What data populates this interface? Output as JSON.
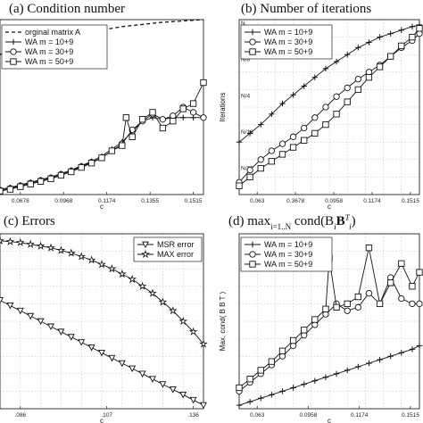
{
  "chart_data": [
    {
      "id": "a",
      "type": "line",
      "title": "(a) Condition number",
      "xlabel": "c",
      "ylabel": "",
      "x_ticks": [
        "0.0678",
        "0.0968",
        "0.1174",
        "0.1355",
        "0.1515"
      ],
      "xlim": [
        0,
        1
      ],
      "ylim": [
        0,
        1
      ],
      "legend": {
        "placement": "top-left",
        "entries": [
          {
            "label": "orginal matrix  A",
            "marker": "none",
            "dash": true
          },
          {
            "label": "WA  m = 10+9",
            "marker": "plus"
          },
          {
            "label": "WA  m = 30+9",
            "marker": "circle"
          },
          {
            "label": "WA  m = 50+9",
            "marker": "square"
          }
        ]
      },
      "grid": false,
      "series": [
        {
          "marker": "none",
          "dash": true,
          "values_x": [
            0,
            0.2,
            0.4,
            0.6,
            0.8,
            1.0
          ],
          "values_y": [
            0.8,
            0.87,
            0.92,
            0.96,
            0.985,
            1.0
          ]
        },
        {
          "marker": "plus",
          "values_x": [
            0,
            0.05,
            0.1,
            0.15,
            0.2,
            0.25,
            0.3,
            0.35,
            0.4,
            0.45,
            0.5,
            0.55,
            0.6,
            0.65,
            0.7,
            0.75,
            0.8,
            0.85,
            0.9,
            0.95,
            1.0
          ],
          "values_y": [
            0.03,
            0.04,
            0.055,
            0.07,
            0.085,
            0.1,
            0.12,
            0.14,
            0.165,
            0.19,
            0.22,
            0.26,
            0.3,
            0.36,
            0.42,
            0.44,
            0.43,
            0.44,
            0.44,
            0.44,
            0.44
          ]
        },
        {
          "marker": "circle",
          "values_x": [
            0,
            0.05,
            0.1,
            0.15,
            0.2,
            0.25,
            0.3,
            0.35,
            0.4,
            0.45,
            0.5,
            0.55,
            0.6,
            0.65,
            0.7,
            0.75,
            0.8,
            0.85,
            0.9,
            0.95,
            1.0
          ],
          "values_y": [
            0.025,
            0.035,
            0.05,
            0.065,
            0.08,
            0.095,
            0.115,
            0.135,
            0.16,
            0.185,
            0.21,
            0.25,
            0.29,
            0.37,
            0.42,
            0.46,
            0.43,
            0.45,
            0.5,
            0.47,
            0.44
          ]
        },
        {
          "marker": "square",
          "values_x": [
            0,
            0.05,
            0.1,
            0.15,
            0.2,
            0.25,
            0.3,
            0.35,
            0.4,
            0.45,
            0.5,
            0.55,
            0.6,
            0.62,
            0.65,
            0.7,
            0.75,
            0.8,
            0.85,
            0.9,
            0.95,
            1.0
          ],
          "values_y": [
            0.02,
            0.03,
            0.045,
            0.06,
            0.075,
            0.09,
            0.11,
            0.13,
            0.155,
            0.18,
            0.21,
            0.25,
            0.28,
            0.44,
            0.33,
            0.43,
            0.47,
            0.38,
            0.42,
            0.49,
            0.52,
            0.64
          ]
        }
      ]
    },
    {
      "id": "b",
      "type": "line",
      "title": "(b) Number of iterations",
      "xlabel": "c",
      "ylabel": "Iterations",
      "x_ticks": [
        "0.063",
        "0.3678",
        "0.0958",
        "0.1174",
        "0.1515"
      ],
      "y_ticks": [
        "N/32",
        "N/16",
        "N/4",
        "N/8",
        "N"
      ],
      "xlim": [
        0,
        1
      ],
      "ylim": [
        0,
        1
      ],
      "legend": {
        "placement": "top-left",
        "entries": [
          {
            "label": "WA  m = 10+9",
            "marker": "plus"
          },
          {
            "label": "WA  m = 30+9",
            "marker": "circle"
          },
          {
            "label": "WA  m = 50+9",
            "marker": "square"
          }
        ]
      },
      "grid": true,
      "series": [
        {
          "marker": "plus",
          "values_x": [
            0,
            0.06,
            0.12,
            0.18,
            0.24,
            0.3,
            0.36,
            0.42,
            0.48,
            0.54,
            0.6,
            0.66,
            0.72,
            0.78,
            0.84,
            0.9,
            0.96,
            1.0
          ],
          "values_y": [
            0.3,
            0.35,
            0.4,
            0.46,
            0.52,
            0.57,
            0.62,
            0.67,
            0.72,
            0.76,
            0.8,
            0.84,
            0.87,
            0.9,
            0.92,
            0.94,
            0.96,
            0.97
          ]
        },
        {
          "marker": "circle",
          "values_x": [
            0,
            0.06,
            0.12,
            0.18,
            0.24,
            0.3,
            0.36,
            0.42,
            0.48,
            0.54,
            0.6,
            0.66,
            0.72,
            0.78,
            0.84,
            0.9,
            0.96,
            1.0
          ],
          "values_y": [
            0.07,
            0.14,
            0.2,
            0.25,
            0.29,
            0.33,
            0.38,
            0.44,
            0.5,
            0.56,
            0.61,
            0.66,
            0.7,
            0.74,
            0.79,
            0.84,
            0.88,
            0.92
          ]
        },
        {
          "marker": "square",
          "values_x": [
            0,
            0.06,
            0.12,
            0.18,
            0.24,
            0.3,
            0.36,
            0.42,
            0.48,
            0.54,
            0.6,
            0.66,
            0.72,
            0.78,
            0.84,
            0.9,
            0.96,
            1.0
          ],
          "values_y": [
            0.05,
            0.1,
            0.15,
            0.19,
            0.23,
            0.27,
            0.31,
            0.35,
            0.4,
            0.46,
            0.53,
            0.6,
            0.67,
            0.73,
            0.79,
            0.85,
            0.9,
            0.95
          ]
        }
      ]
    },
    {
      "id": "c",
      "type": "line",
      "title": "(c) Errors",
      "xlabel": "c",
      "ylabel": "",
      "x_ticks": [
        ".086",
        ".107",
        ".136"
      ],
      "xlim": [
        0,
        1
      ],
      "ylim": [
        0,
        1
      ],
      "legend": {
        "placement": "top-right",
        "entries": [
          {
            "label": "MSR error",
            "marker": "triangle"
          },
          {
            "label": "MAX error",
            "marker": "star"
          }
        ]
      },
      "grid": true,
      "series": [
        {
          "marker": "star",
          "values_x": [
            0,
            0.05,
            0.1,
            0.15,
            0.2,
            0.25,
            0.3,
            0.35,
            0.4,
            0.45,
            0.5,
            0.55,
            0.6,
            0.65,
            0.7,
            0.75,
            0.8,
            0.85,
            0.9,
            0.95,
            1.0
          ],
          "values_y": [
            0.96,
            0.955,
            0.95,
            0.94,
            0.93,
            0.92,
            0.905,
            0.89,
            0.87,
            0.85,
            0.825,
            0.8,
            0.77,
            0.74,
            0.7,
            0.66,
            0.61,
            0.56,
            0.5,
            0.44,
            0.37
          ]
        },
        {
          "marker": "triangle",
          "values_x": [
            0,
            0.05,
            0.1,
            0.15,
            0.2,
            0.25,
            0.3,
            0.35,
            0.4,
            0.45,
            0.5,
            0.55,
            0.6,
            0.65,
            0.7,
            0.75,
            0.8,
            0.85,
            0.9,
            0.95,
            1.0
          ],
          "values_y": [
            0.62,
            0.59,
            0.56,
            0.53,
            0.5,
            0.47,
            0.44,
            0.41,
            0.38,
            0.35,
            0.32,
            0.29,
            0.26,
            0.23,
            0.2,
            0.17,
            0.14,
            0.11,
            0.08,
            0.05,
            0.02
          ]
        }
      ]
    },
    {
      "id": "d",
      "type": "line",
      "title": "(d) max",
      "title_sub": "i=1..N",
      "title_rest": " cond(B",
      "title_sub2": "i",
      "title_b": "B",
      "title_sup": "T",
      "title_sub3": "i",
      "title_end": ")",
      "xlabel": "c",
      "ylabel": "Max, cond( B B T )",
      "x_ticks": [
        "0.063",
        "0.0958",
        "0.1174",
        "0.1515"
      ],
      "xlim": [
        0,
        1
      ],
      "ylim": [
        0,
        1
      ],
      "legend": {
        "placement": "top-left",
        "entries": [
          {
            "label": "WA  m = 10+9",
            "marker": "plus"
          },
          {
            "label": "WA  m = 30+9",
            "marker": "circle"
          },
          {
            "label": "WA  m = 50+9",
            "marker": "square"
          }
        ]
      },
      "grid": true,
      "series": [
        {
          "marker": "plus",
          "values_x": [
            0,
            0.06,
            0.12,
            0.18,
            0.24,
            0.3,
            0.36,
            0.42,
            0.48,
            0.54,
            0.6,
            0.66,
            0.72,
            0.78,
            0.84,
            0.9,
            0.96,
            1.0
          ],
          "values_y": [
            0.02,
            0.04,
            0.06,
            0.08,
            0.1,
            0.12,
            0.14,
            0.16,
            0.18,
            0.2,
            0.22,
            0.24,
            0.26,
            0.28,
            0.3,
            0.32,
            0.34,
            0.36
          ]
        },
        {
          "marker": "circle",
          "values_x": [
            0,
            0.06,
            0.12,
            0.18,
            0.24,
            0.3,
            0.36,
            0.42,
            0.48,
            0.54,
            0.6,
            0.66,
            0.72,
            0.78,
            0.84,
            0.9,
            0.96,
            1.0
          ],
          "values_y": [
            0.1,
            0.15,
            0.2,
            0.25,
            0.3,
            0.36,
            0.42,
            0.48,
            0.54,
            0.6,
            0.56,
            0.58,
            0.66,
            0.6,
            0.75,
            0.63,
            0.6,
            0.6
          ]
        },
        {
          "marker": "square",
          "values_x": [
            0,
            0.06,
            0.12,
            0.18,
            0.24,
            0.3,
            0.36,
            0.42,
            0.48,
            0.5,
            0.54,
            0.6,
            0.66,
            0.72,
            0.78,
            0.84,
            0.9,
            0.96,
            1.0
          ],
          "values_y": [
            0.12,
            0.17,
            0.22,
            0.27,
            0.33,
            0.39,
            0.45,
            0.51,
            0.57,
            0.86,
            0.58,
            0.6,
            0.64,
            0.92,
            0.6,
            0.72,
            0.83,
            0.7,
            0.78
          ]
        }
      ]
    }
  ]
}
